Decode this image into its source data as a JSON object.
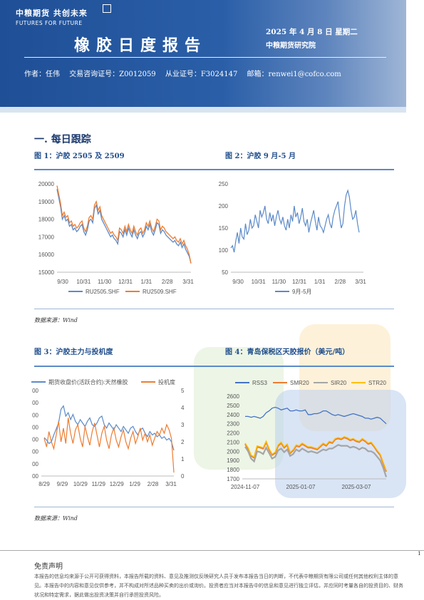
{
  "header": {
    "logo_cn": "中粮期货 共创未来",
    "logo_en": "FUTURES FOR FUTURE",
    "title": "橡胶日度报告",
    "date": "2025 年 4 月 8 日 星期二",
    "org": "中粮期货研究院",
    "author": "作者：任伟",
    "license": "交易咨询证号：Z0012059",
    "practice": "从业证号：F3024147",
    "email": "邮箱：renwei1@cofco.com"
  },
  "section": {
    "title": "一. 每日跟踪"
  },
  "figures": [
    {
      "title": "图 1：沪胶 2505 及 2509"
    },
    {
      "title": "图 2：沪胶 9 月-5 月"
    },
    {
      "title": "图 3：沪胶主力与投机度"
    },
    {
      "title": "图 4：青岛保税区天胶报价（美元/吨）"
    }
  ],
  "sources": [
    "数据来源：Wind",
    "数据来源：Wind"
  ],
  "footer": {
    "disclaimer_title": "免责声明",
    "disclaimer_text": "本报告的信息均来源于公开可获得资料，本报告所载的资料、意见及推测仅反映研究人员于发布本报告当日的判断，不代表中粮期货有限公司或任何其他权利主体的意见。本报告中的内容和意见仅供参考，并不构成对所述品种买卖的出价或询价。投资者应当对本报告中的信息和意见进行独立评估，并应同时考量各自的投资目的、财务状况和特定需求，据此做出投资决策并自行承担投资风险。",
    "page": "1"
  },
  "colors": {
    "blue": "#5b8ac9",
    "orange": "#ed7d31",
    "gray": "#a5a5a5",
    "yellow": "#ffc000",
    "rss3": "#4472c4"
  },
  "chart_data": [
    {
      "type": "line",
      "x_ticks": [
        "9/30",
        "10/31",
        "11/30",
        "12/31",
        "1/31",
        "2/28",
        "3/31"
      ],
      "ylim": [
        15000,
        20000
      ],
      "y_ticks": [
        "15000",
        "16000",
        "17000",
        "18000",
        "19000",
        "20000"
      ],
      "series": [
        {
          "name": "RU2505.SHF",
          "color": "#5b8ac9",
          "values": [
            19700,
            19200,
            18700,
            18000,
            18200,
            17900,
            18000,
            17600,
            17700,
            17400,
            17500,
            17300,
            17400,
            17600,
            17700,
            17300,
            17100,
            17400,
            17900,
            18000,
            17800,
            18600,
            18800,
            18300,
            18500,
            18000,
            17800,
            17600,
            17400,
            17200,
            17000,
            17100,
            16900,
            16800,
            16600,
            17300,
            17200,
            17000,
            17400,
            17100,
            17500,
            17200,
            17000,
            17400,
            17100,
            16900,
            17200,
            17300,
            17000,
            17200,
            17600,
            17400,
            17700,
            17300,
            17100,
            17400,
            17800,
            17700,
            17200,
            17400,
            17300,
            17100,
            17000,
            16900,
            16800,
            16700,
            16800,
            16600,
            16500,
            16700,
            16400,
            16600,
            16300,
            16100,
            15900,
            15500
          ]
        },
        {
          "name": "RU2509.SHF",
          "color": "#ed7d31",
          "values": [
            19900,
            19400,
            18900,
            18200,
            18400,
            18100,
            18200,
            17800,
            17900,
            17600,
            17700,
            17500,
            17600,
            17800,
            17900,
            17500,
            17300,
            17600,
            18100,
            18200,
            18000,
            18800,
            19000,
            18500,
            18700,
            18200,
            18000,
            17800,
            17600,
            17400,
            17200,
            17300,
            17100,
            17000,
            16800,
            17500,
            17400,
            17200,
            17600,
            17300,
            17700,
            17400,
            17200,
            17600,
            17300,
            17100,
            17400,
            17500,
            17200,
            17400,
            17800,
            17600,
            17900,
            17500,
            17300,
            17600,
            18000,
            17900,
            17400,
            17600,
            17500,
            17300,
            17200,
            17100,
            17000,
            16900,
            17000,
            16800,
            16700,
            16900,
            16600,
            16800,
            16500,
            16300,
            16000,
            15500
          ]
        }
      ]
    },
    {
      "type": "line",
      "x_ticks": [
        "9/30",
        "10/31",
        "11/30",
        "12/31",
        "1/31",
        "2/28",
        "3/31"
      ],
      "ylim": [
        50,
        250
      ],
      "y_ticks": [
        "50",
        "100",
        "150",
        "200",
        "250"
      ],
      "series": [
        {
          "name": "9月-5月",
          "color": "#5b8ac9",
          "values": [
            105,
            110,
            95,
            120,
            140,
            115,
            150,
            130,
            125,
            160,
            135,
            145,
            170,
            150,
            155,
            180,
            165,
            150,
            190,
            175,
            185,
            200,
            170,
            160,
            185,
            165,
            180,
            155,
            175,
            190,
            170,
            160,
            175,
            155,
            145,
            170,
            150,
            180,
            165,
            200,
            175,
            185,
            160,
            175,
            195,
            165,
            155,
            170,
            140,
            160,
            175,
            190,
            165,
            145,
            175,
            155,
            150,
            140,
            155,
            170,
            180,
            160,
            150,
            175,
            190,
            200,
            210,
            175,
            150,
            160,
            200,
            225,
            235,
            220,
            190,
            170,
            175,
            190,
            160,
            140
          ]
        }
      ]
    },
    {
      "type": "line",
      "x_ticks": [
        "8/29",
        "9/29",
        "10/29",
        "11/29",
        "12/29",
        "1/29",
        "2/28",
        "3/31"
      ],
      "y_left_ticks": [
        "00",
        "00",
        "00",
        "00",
        "00",
        "00",
        "00",
        "00"
      ],
      "y_right_ticks": [
        "0",
        "1",
        "2",
        "3",
        "4",
        "5"
      ],
      "y_right_lim": [
        0,
        5
      ],
      "series": [
        {
          "name": "期货收盘价(活跃合约):天然橡胶",
          "color": "#5b8ac9",
          "axis": "left",
          "values": [
            0.45,
            0.42,
            0.38,
            0.4,
            0.48,
            0.55,
            0.62,
            0.78,
            0.82,
            0.7,
            0.74,
            0.66,
            0.72,
            0.64,
            0.6,
            0.66,
            0.62,
            0.58,
            0.64,
            0.68,
            0.6,
            0.58,
            0.62,
            0.68,
            0.7,
            0.6,
            0.56,
            0.62,
            0.58,
            0.54,
            0.6,
            0.56,
            0.52,
            0.58,
            0.54,
            0.5,
            0.56,
            0.58,
            0.52,
            0.48,
            0.54,
            0.56,
            0.5,
            0.46,
            0.52,
            0.48,
            0.5,
            0.46,
            0.48,
            0.44,
            0.46,
            0.42,
            0.44,
            0.4,
            0.3
          ]
        },
        {
          "name": "投机度",
          "color": "#ed7d31",
          "axis": "right",
          "values": [
            2.2,
            1.7,
            2.6,
            2.0,
            1.6,
            2.4,
            3.2,
            2.0,
            2.8,
            1.9,
            3.4,
            2.5,
            1.9,
            2.7,
            3.0,
            2.2,
            1.7,
            2.9,
            2.3,
            1.8,
            2.6,
            3.1,
            2.4,
            1.7,
            2.5,
            2.9,
            2.1,
            1.6,
            2.4,
            2.8,
            2.1,
            1.7,
            2.3,
            2.7,
            2.0,
            1.6,
            2.2,
            2.6,
            1.9,
            2.3,
            2.8,
            2.1,
            2.5,
            2.0,
            2.4,
            1.8,
            2.2,
            2.6,
            2.4,
            2.8,
            2.5,
            3.0,
            2.7,
            2.2,
            0.2
          ]
        }
      ]
    },
    {
      "type": "line",
      "x_ticks": [
        "2024-11-07",
        "2025-01-07",
        "2025-03-07"
      ],
      "ylim": [
        1700,
        2600
      ],
      "y_ticks": [
        "1700",
        "1800",
        "1900",
        "2000",
        "2100",
        "2200",
        "2300",
        "2400",
        "2500",
        "2600"
      ],
      "series": [
        {
          "name": "RSS3",
          "color": "#4472c4",
          "values": [
            2380,
            2380,
            2370,
            2380,
            2370,
            2360,
            2380,
            2420,
            2440,
            2470,
            2480,
            2470,
            2450,
            2460,
            2470,
            2440,
            2440,
            2450,
            2440,
            2440,
            2450,
            2400,
            2400,
            2410,
            2410,
            2420,
            2440,
            2440,
            2420,
            2400,
            2390,
            2400,
            2390,
            2380,
            2390,
            2400,
            2410,
            2400,
            2390,
            2380,
            2360,
            2360,
            2350,
            2360,
            2370,
            2360,
            2330,
            2300
          ]
        },
        {
          "name": "SMR20",
          "color": "#ed7d31",
          "values": [
            2080,
            2030,
            1950,
            1930,
            2050,
            2040,
            2030,
            2100,
            2020,
            1960,
            1980,
            2060,
            2090,
            2040,
            2070,
            1980,
            2010,
            2060,
            2050,
            2080,
            2060,
            2040,
            2040,
            2030,
            2020,
            2050,
            2080,
            2060,
            2100,
            2090,
            2130,
            2140,
            2130,
            2150,
            2140,
            2120,
            2130,
            2110,
            2100,
            2130,
            2110,
            2080,
            2090,
            2050,
            2000,
            1960,
            1870,
            1780
          ]
        },
        {
          "name": "SIR20",
          "color": "#a5a5a5",
          "values": [
            2050,
            2000,
            1920,
            1890,
            2000,
            1990,
            1970,
            2040,
            1980,
            1920,
            1940,
            2010,
            2030,
            1990,
            2020,
            1950,
            1970,
            2020,
            2000,
            2030,
            2010,
            1990,
            2000,
            1990,
            1980,
            2000,
            2020,
            2010,
            2030,
            2030,
            2050,
            2070,
            2060,
            2060,
            2060,
            2040,
            2050,
            2040,
            2020,
            2040,
            2030,
            2000,
            2000,
            1980,
            1940,
            1900,
            1820,
            1720
          ]
        },
        {
          "name": "STR20",
          "color": "#ffc000",
          "values": [
            2090,
            2040,
            1960,
            1940,
            2060,
            2050,
            2040,
            2110,
            2030,
            1970,
            1990,
            2070,
            2100,
            2050,
            2080,
            1990,
            2020,
            2070,
            2060,
            2090,
            2070,
            2050,
            2050,
            2040,
            2030,
            2060,
            2090,
            2070,
            2110,
            2100,
            2140,
            2150,
            2140,
            2160,
            2150,
            2130,
            2140,
            2120,
            2110,
            2140,
            2120,
            2090,
            2100,
            2060,
            2010,
            1970,
            1880,
            1790
          ]
        }
      ]
    }
  ]
}
